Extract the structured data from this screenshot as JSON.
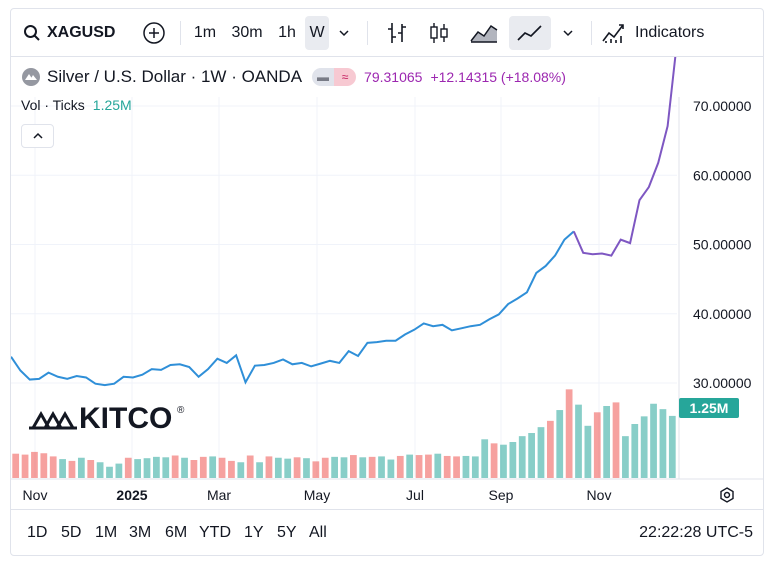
{
  "toolbar": {
    "symbol": "XAGUSD",
    "intervals": [
      "1m",
      "30m",
      "1h",
      "W"
    ],
    "active_interval": "W",
    "indicators_label": "Indicators",
    "icons": [
      "search-icon",
      "add-compare-icon",
      "chevron-down-icon",
      "bar-chart-icon",
      "candlestick-icon",
      "area-chart-icon",
      "line-chart-icon",
      "chevron-down-icon",
      "indicators-icon"
    ]
  },
  "legend": {
    "title": "Silver / U.S. Dollar · 1W · OANDA",
    "price": "79.31065",
    "change": "+12.14315 (+18.08%)",
    "color": "#9c27b0"
  },
  "volume": {
    "label": "Vol · Ticks",
    "value": "1.25M",
    "badge": "1.25M",
    "up_color": "#26a69a",
    "down_color": "#ef5350"
  },
  "watermark": "KITCO",
  "bottombar": {
    "ranges": [
      "1D",
      "5D",
      "1M",
      "3M",
      "6M",
      "YTD",
      "1Y",
      "5Y",
      "All"
    ],
    "clock": "22:22:28 UTC-5"
  },
  "chart_data": {
    "type": "line",
    "title": "Silver / U.S. Dollar · 1W · OANDA",
    "xlabel": "",
    "ylabel": "",
    "x_tick_labels": [
      "Nov",
      "2025",
      "Mar",
      "May",
      "Jul",
      "Sep",
      "Nov"
    ],
    "y_tick_labels": [
      "30.00000",
      "40.00000",
      "50.00000",
      "60.00000",
      "70.00000"
    ],
    "ylim": [
      26,
      81
    ],
    "grid": true,
    "last_price_label": "79.31065",
    "line_color": "#2f8fd8",
    "series": [
      {
        "values": [
          33.8,
          31.8,
          30.5,
          30.6,
          31.5,
          30.9,
          30.6,
          31.0,
          30.8,
          29.9,
          29.7,
          29.9,
          30.9,
          30.8,
          31.2,
          32.0,
          31.9,
          32.6,
          32.7,
          32.3,
          30.9,
          32.0,
          33.5,
          32.9,
          34.0,
          30.1,
          32.5,
          32.6,
          32.9,
          33.4,
          32.7,
          32.9,
          32.4,
          32.8,
          33.2,
          32.9,
          34.6,
          33.9,
          35.8,
          35.9,
          36.1,
          36.1,
          37.0,
          37.7,
          38.6,
          38.2,
          38.4,
          37.6,
          37.9,
          38.2,
          38.4,
          39.2,
          39.9,
          41.4,
          42.2,
          43.1,
          45.9,
          46.9,
          48.4,
          50.7,
          51.9,
          48.8,
          48.6,
          48.7,
          48.4,
          50.7,
          50.2,
          56.4,
          58.3,
          61.8,
          67.1,
          79.3
        ]
      }
    ],
    "volume_bars": {
      "dir": [
        0,
        0,
        0,
        0,
        0,
        1,
        0,
        1,
        0,
        1,
        1,
        1,
        0,
        1,
        1,
        1,
        1,
        0,
        1,
        0,
        0,
        1,
        0,
        0,
        1,
        0,
        1,
        0,
        1,
        1,
        0,
        1,
        0,
        0,
        1,
        1,
        0,
        1,
        0,
        1,
        1,
        0,
        1,
        0,
        0,
        1,
        0,
        0,
        1,
        1,
        1,
        0,
        1,
        1,
        1,
        1,
        1,
        0,
        1,
        0,
        1,
        1,
        0,
        1,
        0,
        1,
        1,
        1,
        1,
        1,
        1
      ],
      "h": [
        0.54,
        0.52,
        0.58,
        0.55,
        0.48,
        0.42,
        0.38,
        0.45,
        0.4,
        0.35,
        0.25,
        0.32,
        0.45,
        0.42,
        0.44,
        0.47,
        0.46,
        0.5,
        0.45,
        0.4,
        0.47,
        0.48,
        0.45,
        0.38,
        0.35,
        0.5,
        0.35,
        0.48,
        0.45,
        0.43,
        0.46,
        0.44,
        0.37,
        0.45,
        0.47,
        0.46,
        0.51,
        0.46,
        0.47,
        0.48,
        0.41,
        0.49,
        0.52,
        0.51,
        0.52,
        0.54,
        0.49,
        0.48,
        0.49,
        0.48,
        0.86,
        0.77,
        0.74,
        0.8,
        0.93,
        1.0,
        1.13,
        1.27,
        1.51,
        1.97,
        1.63,
        1.16,
        1.46,
        1.6,
        1.68,
        0.93,
        1.2,
        1.37,
        1.65,
        1.53,
        1.38
      ]
    }
  }
}
